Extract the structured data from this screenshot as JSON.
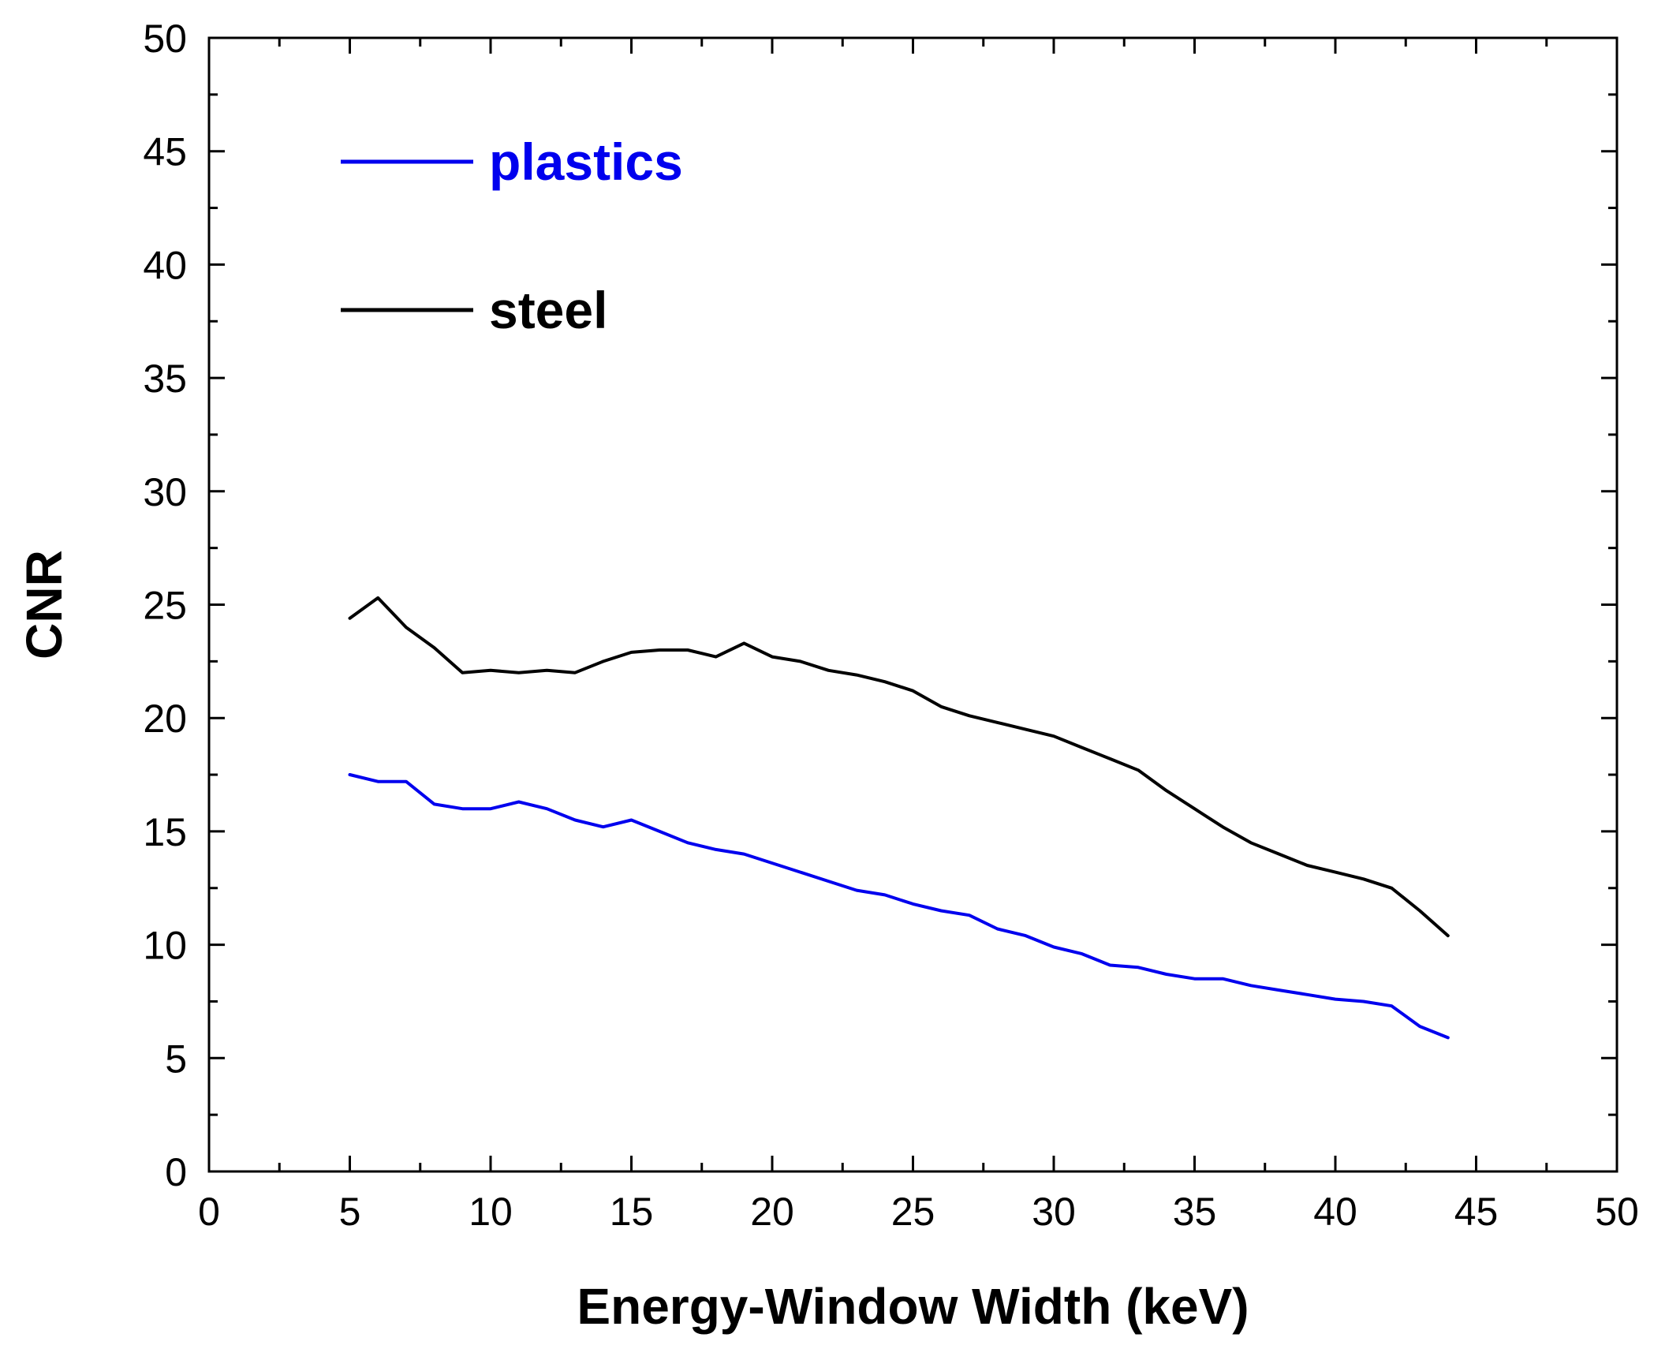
{
  "chart_data": {
    "type": "line",
    "title": "",
    "xlabel": "Energy-Window Width (keV)",
    "ylabel": "CNR",
    "xlim": [
      0,
      50
    ],
    "ylim": [
      0,
      50
    ],
    "x_major_ticks": [
      0,
      5,
      10,
      15,
      20,
      25,
      30,
      35,
      40,
      45,
      50
    ],
    "y_major_ticks": [
      0,
      5,
      10,
      15,
      20,
      25,
      30,
      35,
      40,
      45,
      50
    ],
    "x_minor_step": 2.5,
    "y_minor_step": 2.5,
    "grid": false,
    "legend_position": "top-left",
    "series": [
      {
        "name": "plastics",
        "color": "#0000ee",
        "x": [
          5,
          6,
          7,
          8,
          9,
          10,
          11,
          12,
          13,
          14,
          15,
          16,
          17,
          18,
          19,
          20,
          21,
          22,
          23,
          24,
          25,
          26,
          27,
          28,
          29,
          30,
          31,
          32,
          33,
          34,
          35,
          36,
          37,
          38,
          39,
          40,
          41,
          42,
          43,
          44
        ],
        "y": [
          17.5,
          17.2,
          17.2,
          16.2,
          16.0,
          16.0,
          16.3,
          16.0,
          15.5,
          15.2,
          15.5,
          15.0,
          14.5,
          14.2,
          14.0,
          13.6,
          13.2,
          12.8,
          12.4,
          12.2,
          11.8,
          11.5,
          11.3,
          10.7,
          10.4,
          9.9,
          9.6,
          9.1,
          9.0,
          8.7,
          8.5,
          8.5,
          8.2,
          8.0,
          7.8,
          7.6,
          7.5,
          7.3,
          6.4,
          5.9
        ]
      },
      {
        "name": "steel",
        "color": "#000000",
        "x": [
          5,
          6,
          7,
          8,
          9,
          10,
          11,
          12,
          13,
          14,
          15,
          16,
          17,
          18,
          19,
          20,
          21,
          22,
          23,
          24,
          25,
          26,
          27,
          28,
          29,
          30,
          31,
          32,
          33,
          34,
          35,
          36,
          37,
          38,
          39,
          40,
          41,
          42,
          43,
          44
        ],
        "y": [
          24.4,
          25.3,
          24.0,
          23.1,
          22.0,
          22.1,
          22.0,
          22.1,
          22.0,
          22.5,
          22.9,
          23.0,
          23.0,
          22.7,
          23.3,
          22.7,
          22.5,
          22.1,
          21.9,
          21.6,
          21.2,
          20.5,
          20.1,
          19.8,
          19.5,
          19.2,
          18.7,
          18.2,
          17.7,
          16.8,
          16.0,
          15.2,
          14.5,
          14.0,
          13.5,
          13.2,
          12.9,
          12.5,
          11.5,
          10.4
        ]
      }
    ]
  }
}
